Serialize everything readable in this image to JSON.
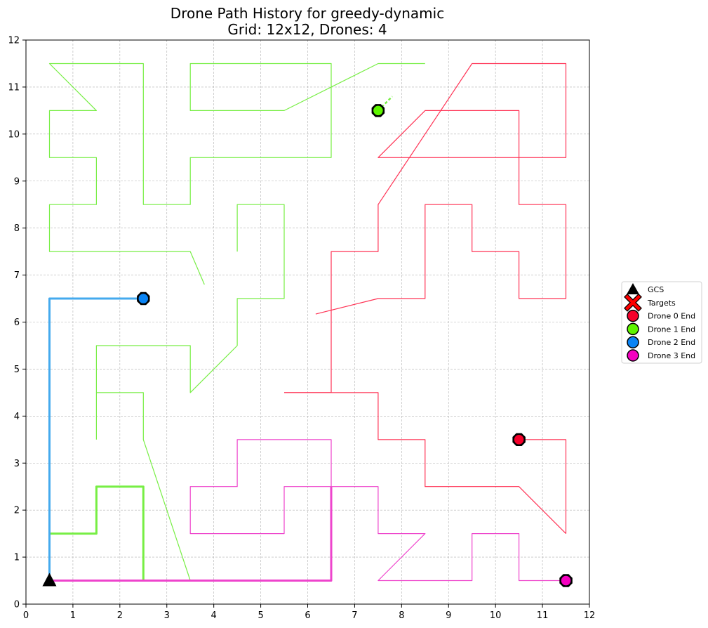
{
  "chart_data": {
    "type": "line",
    "title": "Drone Path History for greedy-dynamic",
    "subtitle": "Grid: 12x12, Drones: 4",
    "xlabel": "",
    "ylabel": "",
    "xlim": [
      0,
      12
    ],
    "ylim": [
      0,
      12
    ],
    "x_ticks": [
      "0",
      "1",
      "2",
      "3",
      "4",
      "5",
      "6",
      "7",
      "8",
      "9",
      "10",
      "11",
      "12"
    ],
    "y_ticks": [
      "0",
      "1",
      "2",
      "3",
      "4",
      "5",
      "6",
      "7",
      "8",
      "9",
      "10",
      "11",
      "12"
    ],
    "grid": true,
    "legend_placement": "right",
    "gcs": {
      "x": 0.5,
      "y": 0.5,
      "color": "#000000"
    },
    "legend": [
      {
        "label": "GCS",
        "marker": "triangle",
        "color": "#000000"
      },
      {
        "label": "Targets",
        "marker": "x",
        "color": "#ff0000"
      },
      {
        "label": "Drone 0 End",
        "marker": "circle",
        "color": "#f5002a"
      },
      {
        "label": "Drone 1 End",
        "marker": "circle",
        "color": "#5ef500"
      },
      {
        "label": "Drone 2 End",
        "marker": "circle",
        "color": "#0a84f5"
      },
      {
        "label": "Drone 3 End",
        "marker": "circle",
        "color": "#f500c0"
      }
    ],
    "series": [
      {
        "color": "#ff3355",
        "end": [
          10.5,
          3.5
        ],
        "paths": [
          [
            [
              11.5,
              1.5
            ],
            [
              11.5,
              3.5
            ],
            [
              10.5,
              3.5
            ]
          ],
          [
            [
              11.5,
              1.5
            ],
            [
              10.5,
              2.5
            ],
            [
              8.5,
              2.5
            ],
            [
              8.5,
              3.5
            ],
            [
              7.5,
              3.5
            ],
            [
              7.5,
              4.5
            ],
            [
              5.5,
              4.5
            ]
          ],
          [
            [
              5.5,
              4.5
            ],
            [
              6.5,
              4.5
            ],
            [
              6.5,
              7.5
            ],
            [
              7.5,
              7.5
            ],
            [
              7.5,
              8.5
            ],
            [
              9.5,
              11.5
            ],
            [
              11.5,
              11.5
            ],
            [
              11.5,
              9.5
            ],
            [
              7.5,
              9.5
            ],
            [
              8.5,
              10.5
            ],
            [
              10.5,
              10.5
            ],
            [
              10.5,
              8.5
            ],
            [
              11.5,
              8.5
            ],
            [
              11.5,
              6.5
            ],
            [
              10.5,
              6.5
            ],
            [
              10.5,
              7.5
            ],
            [
              9.5,
              7.5
            ],
            [
              9.5,
              8.5
            ],
            [
              8.5,
              8.5
            ],
            [
              8.5,
              6.5
            ],
            [
              7.5,
              6.5
            ],
            [
              6.17,
              6.17
            ]
          ]
        ]
      },
      {
        "color": "#77ee44",
        "end": [
          7.5,
          10.5
        ],
        "thick_paths": [
          [
            [
              0.5,
              0.5
            ],
            [
              0.5,
              1.5
            ],
            [
              1.5,
              1.5
            ],
            [
              1.5,
              2.5
            ],
            [
              2.5,
              2.5
            ],
            [
              2.5,
              0.5
            ]
          ]
        ],
        "paths": [
          [
            [
              2.5,
              0.5
            ],
            [
              3.5,
              0.5
            ],
            [
              2.5,
              3.5
            ],
            [
              2.5,
              4.5
            ],
            [
              1.5,
              4.5
            ],
            [
              1.5,
              3.5
            ]
          ],
          [
            [
              1.5,
              4.5
            ],
            [
              1.5,
              5.5
            ],
            [
              3.5,
              5.5
            ],
            [
              3.5,
              4.5
            ],
            [
              4.5,
              5.5
            ],
            [
              4.5,
              6.5
            ],
            [
              5.5,
              6.5
            ],
            [
              5.5,
              8.5
            ],
            [
              4.5,
              8.5
            ],
            [
              4.5,
              7.5
            ]
          ],
          [
            [
              3.8,
              6.8
            ],
            [
              3.5,
              7.5
            ],
            [
              0.5,
              7.5
            ],
            [
              0.5,
              8.5
            ],
            [
              1.5,
              8.5
            ],
            [
              1.5,
              9.5
            ],
            [
              0.5,
              9.5
            ],
            [
              0.5,
              10.5
            ],
            [
              1.5,
              10.5
            ],
            [
              0.5,
              11.5
            ],
            [
              2.5,
              11.5
            ],
            [
              2.5,
              8.5
            ],
            [
              3.5,
              8.5
            ],
            [
              3.5,
              9.5
            ],
            [
              6.5,
              9.5
            ],
            [
              6.5,
              11.5
            ],
            [
              3.5,
              11.5
            ],
            [
              3.5,
              10.5
            ],
            [
              5.5,
              10.5
            ],
            [
              7.5,
              11.5
            ],
            [
              8.5,
              11.5
            ]
          ]
        ],
        "dashed_paths": [
          [
            [
              7.5,
              10.5
            ],
            [
              7.8,
              10.8
            ]
          ]
        ]
      },
      {
        "color": "#44aaee",
        "end": [
          2.5,
          6.5
        ],
        "thick_paths": [
          [
            [
              0.5,
              0.5
            ],
            [
              0.5,
              6.5
            ],
            [
              2.5,
              6.5
            ]
          ]
        ],
        "paths": []
      },
      {
        "color": "#ee44cc",
        "end": [
          11.5,
          0.5
        ],
        "thick_paths": [
          [
            [
              0.5,
              0.5
            ],
            [
              6.5,
              0.5
            ],
            [
              6.5,
              2.5
            ]
          ]
        ],
        "paths": [
          [
            [
              6.5,
              2.5
            ],
            [
              5.5,
              2.5
            ],
            [
              5.5,
              1.5
            ],
            [
              3.5,
              1.5
            ],
            [
              3.5,
              2.5
            ],
            [
              4.5,
              2.5
            ],
            [
              4.5,
              3.5
            ],
            [
              6.5,
              3.5
            ],
            [
              6.5,
              2.5
            ],
            [
              7.5,
              2.5
            ],
            [
              7.5,
              1.5
            ],
            [
              8.5,
              1.5
            ],
            [
              7.5,
              0.5
            ],
            [
              9.5,
              0.5
            ],
            [
              9.5,
              1.5
            ],
            [
              10.5,
              1.5
            ],
            [
              10.5,
              0.5
            ],
            [
              11.5,
              0.5
            ]
          ]
        ]
      }
    ]
  }
}
